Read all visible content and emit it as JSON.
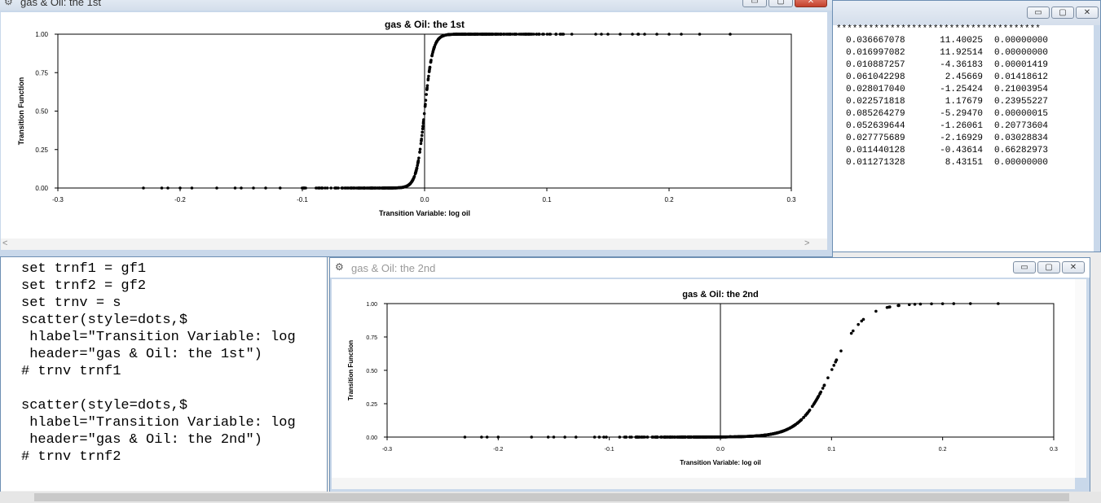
{
  "output_window": {
    "stars": "**************************************",
    "rows": [
      {
        "v1": "0.036667078",
        "v2": "11.40025",
        "v3": "0.00000000"
      },
      {
        "v1": "0.016997082",
        "v2": "11.92514",
        "v3": "0.00000000"
      },
      {
        "v1": "0.010887257",
        "v2": "-4.36183",
        "v3": "0.00001419"
      },
      {
        "v1": "0.061042298",
        "v2": "2.45669",
        "v3": "0.01418612"
      },
      {
        "v1": "0.028017040",
        "v2": "-1.25424",
        "v3": "0.21003954"
      },
      {
        "v1": "0.022571818",
        "v2": "1.17679",
        "v3": "0.23955227"
      },
      {
        "v1": "0.085264279",
        "v2": "-5.29470",
        "v3": "0.00000015"
      },
      {
        "v1": "0.052639644",
        "v2": "-1.26061",
        "v3": "0.20773604"
      },
      {
        "v1": "0.027775689",
        "v2": "-2.16929",
        "v3": "0.03028834"
      },
      {
        "v1": "0.011440128",
        "v2": "-0.43614",
        "v3": "0.66282973"
      },
      {
        "v1": "0.011271328",
        "v2": "8.43151",
        "v3": "0.00000000"
      }
    ]
  },
  "editor": {
    "lines": [
      "set trnf1 = gf1",
      "set trnf2 = gf2",
      "set trnv = s",
      "scatter(style=dots,$",
      " hlabel=\"Transition Variable: log",
      " header=\"gas & Oil: the 1st\")",
      "# trnv trnf1",
      "",
      "scatter(style=dots,$",
      " hlabel=\"Transition Variable: log",
      " header=\"gas & Oil: the 2nd\")",
      "# trnv trnf2"
    ]
  },
  "window1": {
    "title": "gas & Oil: the 1st"
  },
  "window2": {
    "title": "gas & Oil: the 2nd"
  },
  "icons": {
    "min": "▭",
    "max": "▢",
    "close": "✕"
  },
  "chart_data": [
    {
      "type": "scatter",
      "title": "gas & Oil: the 1st",
      "xlabel": "Transition Variable: log oil",
      "ylabel": "Transition Function",
      "xlim": [
        -0.3,
        0.3
      ],
      "ylim": [
        0,
        1
      ],
      "x_ticks": [
        "-0.3",
        "-0.2",
        "-0.1",
        "0.0",
        "0.1",
        "0.2",
        "0.3"
      ],
      "y_ticks": [
        "0.00",
        "0.25",
        "0.50",
        "0.75",
        "1.00"
      ],
      "logistic_center": 0.0,
      "logistic_slope": 300,
      "x_range": [
        -0.23,
        0.25
      ],
      "vline_x": 0.0
    },
    {
      "type": "scatter",
      "title": "gas & Oil: the 2nd",
      "xlabel": "Transition Variable: log oil",
      "ylabel": "Transition Function",
      "xlim": [
        -0.3,
        0.3
      ],
      "ylim": [
        0,
        1
      ],
      "x_ticks": [
        "-0.3",
        "-0.2",
        "-0.1",
        "0.0",
        "0.1",
        "0.2",
        "0.3"
      ],
      "y_ticks": [
        "0.00",
        "0.25",
        "0.50",
        "0.75",
        "1.00"
      ],
      "logistic_center": 0.1,
      "logistic_slope": 70,
      "x_range": [
        -0.23,
        0.25
      ],
      "vline_x": 0.0
    }
  ]
}
